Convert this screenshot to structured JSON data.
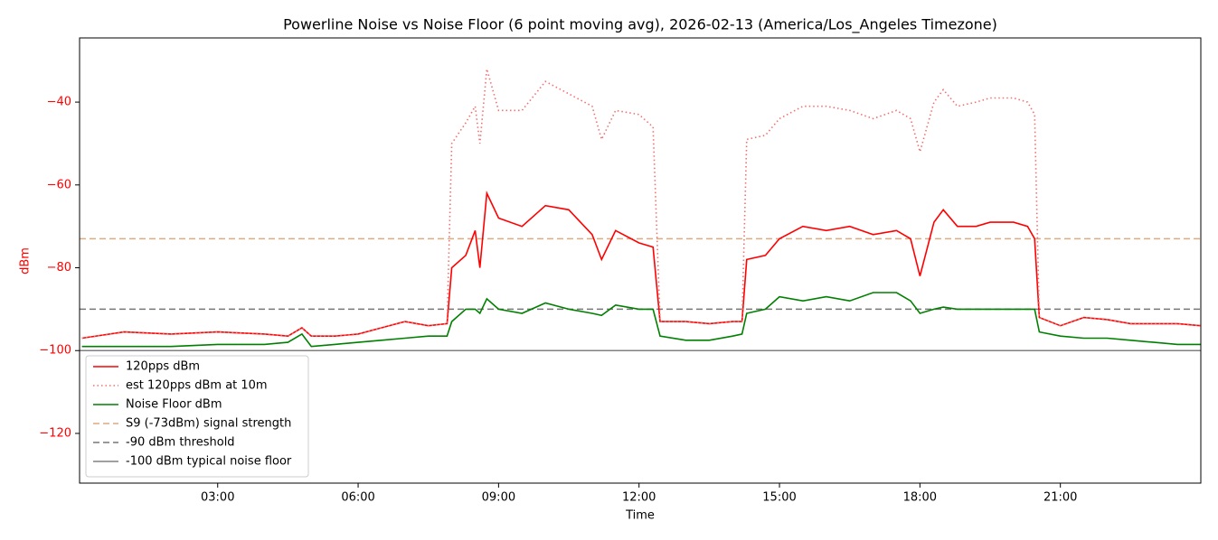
{
  "chart_data": {
    "type": "line",
    "title": "Powerline Noise vs Noise Floor (6 point moving avg), 2026-02-13 (America/Los_Angeles Timezone)",
    "x_label": "Time",
    "y_label": "dBm",
    "y_axis_color": "#ff0000",
    "x": [
      0.1,
      1,
      2,
      3,
      4,
      4.5,
      4.8,
      5,
      5.5,
      6,
      6.5,
      7,
      7.5,
      7.9,
      8.0,
      8.3,
      8.5,
      8.6,
      8.75,
      9,
      9.5,
      10,
      10.5,
      11,
      11.2,
      11.5,
      12,
      12.3,
      12.45,
      13,
      13.5,
      14,
      14.2,
      14.3,
      14.7,
      15,
      15.5,
      16,
      16.5,
      17,
      17.5,
      17.8,
      18,
      18.3,
      18.5,
      18.8,
      19.2,
      19.5,
      20,
      20.3,
      20.45,
      20.55,
      21,
      21.5,
      22,
      22.5,
      23,
      23.5,
      24
    ],
    "series": [
      {
        "name": "120pps dBm",
        "color": "#ff0000",
        "style": "solid",
        "values": [
          -97,
          -95.5,
          -96,
          -95.5,
          -96,
          -96.5,
          -94.5,
          -96.5,
          -96.5,
          -96,
          -94.5,
          -93,
          -94,
          -93.5,
          -80,
          -77,
          -71,
          -80,
          -62,
          -68,
          -70,
          -65,
          -66,
          -72,
          -78,
          -71,
          -74,
          -75,
          -93,
          -93,
          -93.5,
          -93,
          -93,
          -78,
          -77,
          -73,
          -70,
          -71,
          -70,
          -72,
          -71,
          -73,
          -82,
          -69,
          -66,
          -70,
          -70,
          -69,
          -69,
          -70,
          -73,
          -92,
          -94,
          -92,
          -92.5,
          -93.5,
          -93.5,
          -93.5,
          -94
        ]
      },
      {
        "name": "est 120pps dBm at 10m",
        "color": "#f07070",
        "style": "dotted",
        "values": [
          -97,
          -95.5,
          -96,
          -95.5,
          -96,
          -96.5,
          -94.5,
          -96.5,
          -96.5,
          -96,
          -94.5,
          -93,
          -94,
          -93.5,
          -50,
          -45,
          -41,
          -50,
          -32,
          -42,
          -42,
          -35,
          -38,
          -41,
          -49,
          -42,
          -43,
          -46,
          -93,
          -93,
          -93.5,
          -93,
          -93,
          -49,
          -48,
          -44,
          -41,
          -41,
          -42,
          -44,
          -42,
          -44,
          -52,
          -40,
          -37,
          -41,
          -40,
          -39,
          -39,
          -40,
          -43,
          -92,
          -94,
          -92,
          -92.5,
          -93.5,
          -93.5,
          -93.5,
          -94
        ]
      },
      {
        "name": "Noise Floor dBm",
        "color": "#008000",
        "style": "solid",
        "values": [
          -99,
          -99,
          -99,
          -98.5,
          -98.5,
          -98,
          -96,
          -99,
          -98.5,
          -98,
          -97.5,
          -97,
          -96.5,
          -96.5,
          -93,
          -90,
          -90,
          -91,
          -87.5,
          -90,
          -91,
          -88.5,
          -90,
          -91,
          -91.5,
          -89,
          -90,
          -90,
          -96.5,
          -97.5,
          -97.5,
          -96.5,
          -96,
          -91,
          -90,
          -87,
          -88,
          -87,
          -88,
          -86,
          -86,
          -88,
          -91,
          -90,
          -89.5,
          -90,
          -90,
          -90,
          -90,
          -90,
          -90,
          -95.5,
          -96.5,
          -97,
          -97,
          -97.5,
          -98,
          -98.5,
          -98.5
        ]
      }
    ],
    "hlines": [
      {
        "name": "S9 (-73dBm) signal strength",
        "value": -73,
        "color": "#deaa80",
        "style": "dashed"
      },
      {
        "name": "-90 dBm threshold",
        "value": -90,
        "color": "#777777",
        "style": "dashed"
      },
      {
        "name": "-100 dBm typical noise floor",
        "value": -100,
        "color": "#808080",
        "style": "solid"
      }
    ],
    "xlim": [
      0.05,
      24.0
    ],
    "ylim": [
      -132,
      -24.5
    ],
    "xticks": [
      {
        "value": 3,
        "label": "03:00"
      },
      {
        "value": 6,
        "label": "06:00"
      },
      {
        "value": 9,
        "label": "09:00"
      },
      {
        "value": 12,
        "label": "12:00"
      },
      {
        "value": 15,
        "label": "15:00"
      },
      {
        "value": 18,
        "label": "18:00"
      },
      {
        "value": 21,
        "label": "21:00"
      }
    ],
    "yticks": [
      {
        "value": -40,
        "label": "−40"
      },
      {
        "value": -60,
        "label": "−60"
      },
      {
        "value": -80,
        "label": "−80"
      },
      {
        "value": -100,
        "label": "−100"
      },
      {
        "value": -120,
        "label": "−120"
      }
    ],
    "legend": "lower left"
  }
}
